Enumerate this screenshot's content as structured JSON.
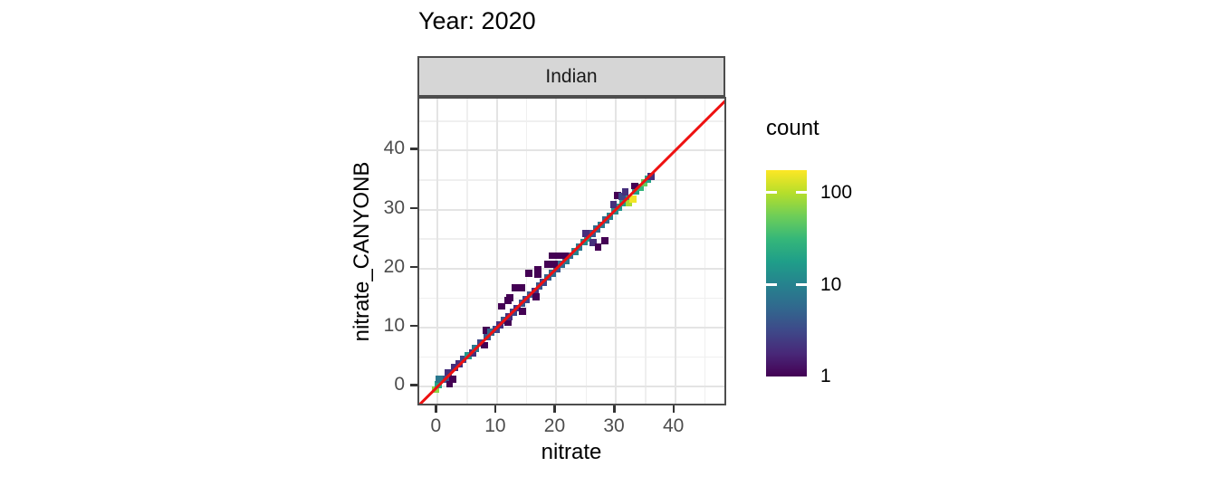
{
  "title": "Year: 2020",
  "facet_label": "Indian",
  "x_axis": {
    "title": "nitrate",
    "tick_labels": [
      "0",
      "10",
      "20",
      "30",
      "40"
    ],
    "tick_values": [
      0,
      10,
      20,
      30,
      40
    ],
    "minor_tick_values": [
      5,
      15,
      25,
      35,
      45
    ],
    "domain": [
      -3.1,
      48.9
    ]
  },
  "y_axis": {
    "title": "nitrate_CANYONB",
    "tick_labels": [
      "0",
      "10",
      "20",
      "30",
      "40"
    ],
    "tick_values": [
      0,
      10,
      20,
      30,
      40
    ],
    "minor_tick_values": [
      5,
      15,
      25,
      35,
      45
    ],
    "domain": [
      -3.5,
      48.8
    ]
  },
  "legend": {
    "title": "count",
    "tick_labels": [
      "100",
      "10",
      "1"
    ],
    "tick_values": [
      100,
      10,
      1
    ],
    "domain": [
      1,
      176
    ],
    "scale": "log10"
  },
  "colors": {
    "identity_line": "#ee1111",
    "strip_fill": "#d6d6d6",
    "panel_border": "#4d4d4d",
    "grid_major": "#e4e4e4",
    "grid_minor": "#efefef",
    "tick_label": "#4d4d4d",
    "viridis_stops": [
      "#440154",
      "#482878",
      "#3e4989",
      "#31688e",
      "#26828e",
      "#1f9e89",
      "#35b779",
      "#6ece58",
      "#b5de2b",
      "#fde725"
    ]
  },
  "chart_data": {
    "type": "heatmap",
    "subtype": "bin2d",
    "title": "Year: 2020",
    "facet": "Indian",
    "xlabel": "nitrate",
    "ylabel": "nitrate_CANYONB",
    "xlim": [
      -3.1,
      48.9
    ],
    "ylim": [
      -3.5,
      48.8
    ],
    "grid": true,
    "legend_position": "right",
    "count_scale": "log10",
    "count_range": [
      1,
      176
    ],
    "bin_size": 1.2,
    "identity_line": {
      "slope": 1,
      "intercept": 0
    },
    "bins": [
      [
        -0.4,
        -0.5,
        70
      ],
      [
        0.1,
        0.3,
        20
      ],
      [
        0.3,
        1.3,
        8
      ],
      [
        1.5,
        1.3,
        4
      ],
      [
        2.6,
        1.2,
        1
      ],
      [
        2.0,
        0.4,
        1
      ],
      [
        1.8,
        2.4,
        2
      ],
      [
        2.9,
        3.2,
        2
      ],
      [
        3.6,
        3.9,
        2
      ],
      [
        4.3,
        4.6,
        3
      ],
      [
        5.1,
        5.2,
        15
      ],
      [
        5.9,
        5.7,
        2
      ],
      [
        6.4,
        6.5,
        8
      ],
      [
        7.2,
        7.4,
        3
      ],
      [
        7.9,
        7.0,
        1
      ],
      [
        8.3,
        8.4,
        4
      ],
      [
        8.2,
        9.5,
        1
      ],
      [
        9.0,
        9.2,
        6
      ],
      [
        9.8,
        9.7,
        3
      ],
      [
        10.5,
        10.4,
        2
      ],
      [
        11.2,
        11.2,
        4
      ],
      [
        11.9,
        10.9,
        1
      ],
      [
        12.0,
        11.9,
        2
      ],
      [
        12.7,
        12.6,
        3
      ],
      [
        13.4,
        13.3,
        2
      ],
      [
        14.2,
        14.1,
        4
      ],
      [
        14.3,
        12.7,
        1
      ],
      [
        14.9,
        14.8,
        3
      ],
      [
        15.7,
        15.6,
        4
      ],
      [
        16.4,
        16.2,
        2
      ],
      [
        16.6,
        15.2,
        1
      ],
      [
        17.1,
        17.0,
        4
      ],
      [
        17.8,
        17.7,
        3
      ],
      [
        18.6,
        18.5,
        5
      ],
      [
        19.3,
        19.2,
        6
      ],
      [
        20.1,
        19.9,
        4
      ],
      [
        20.8,
        20.7,
        6
      ],
      [
        21.6,
        21.4,
        8
      ],
      [
        22.3,
        22.2,
        6
      ],
      [
        23.1,
        22.9,
        10
      ],
      [
        23.8,
        23.7,
        8
      ],
      [
        24.6,
        24.5,
        12
      ],
      [
        25.3,
        25.2,
        18
      ],
      [
        26.1,
        25.9,
        4
      ],
      [
        26.8,
        26.7,
        6
      ],
      [
        27.6,
        27.4,
        8
      ],
      [
        28.3,
        28.2,
        6
      ],
      [
        29.0,
        28.9,
        10
      ],
      [
        29.8,
        29.7,
        12
      ],
      [
        30.5,
        30.4,
        15
      ],
      [
        31.2,
        31.1,
        18
      ],
      [
        31.9,
        31.8,
        22
      ],
      [
        32.2,
        31.1,
        90
      ],
      [
        32.9,
        31.8,
        160
      ],
      [
        33.4,
        33.1,
        20
      ],
      [
        34.1,
        33.8,
        30
      ],
      [
        34.8,
        34.5,
        50
      ],
      [
        35.4,
        35.2,
        20
      ],
      [
        35.9,
        35.6,
        2
      ],
      [
        10.8,
        13.6,
        1
      ],
      [
        11.9,
        14.6,
        1
      ],
      [
        12.2,
        15.1,
        1
      ],
      [
        13.0,
        16.8,
        1
      ],
      [
        14.1,
        16.8,
        1
      ],
      [
        15.3,
        19.2,
        1
      ],
      [
        16.9,
        19.0,
        1
      ],
      [
        16.9,
        19.9,
        1
      ],
      [
        18.5,
        20.7,
        1
      ],
      [
        19.7,
        20.7,
        1
      ],
      [
        19.3,
        22.2,
        1
      ],
      [
        20.4,
        22.2,
        1
      ],
      [
        21.5,
        22.2,
        1
      ],
      [
        24.9,
        25.9,
        2
      ],
      [
        29.6,
        30.9,
        2
      ],
      [
        30.3,
        32.4,
        1
      ],
      [
        31.0,
        32.2,
        3
      ],
      [
        31.6,
        33.0,
        2
      ],
      [
        33.2,
        34.0,
        1
      ],
      [
        26.2,
        24.4,
        2
      ],
      [
        27.0,
        23.6,
        1
      ],
      [
        28.1,
        24.7,
        1
      ]
    ]
  }
}
